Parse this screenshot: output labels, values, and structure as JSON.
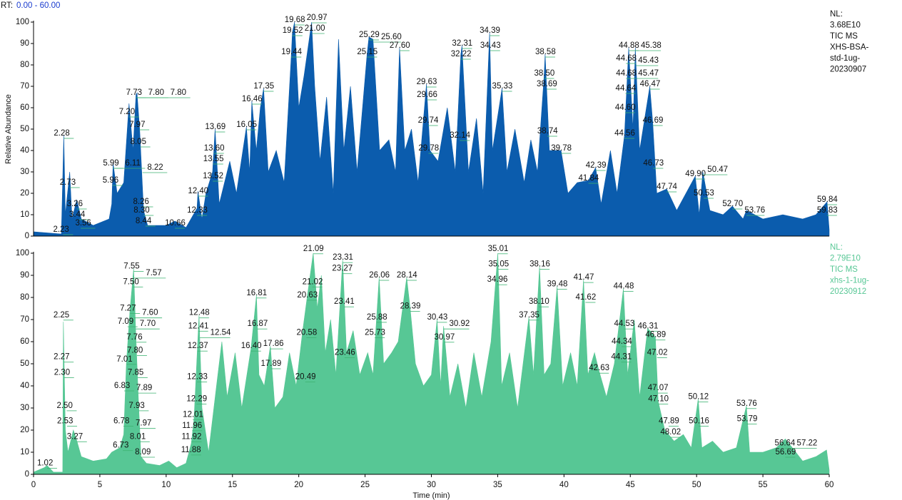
{
  "header": {
    "rt_prefix": "RT:",
    "rt_range": "0.00 - 60.00"
  },
  "chart_data": [
    {
      "type": "area",
      "color": "#0b5cad",
      "info_color": "#111111",
      "ylabel": "Relative Abundance",
      "xlim": [
        0,
        60
      ],
      "ylim": [
        0,
        100
      ],
      "yticks": [
        0,
        10,
        20,
        30,
        40,
        50,
        60,
        70,
        80,
        90,
        100
      ],
      "info_lines": [
        "NL:",
        "3.68E10",
        "TIC MS",
        "XHS-BSA-",
        "std-1ug-",
        "20230907"
      ],
      "x": [
        0,
        2.1,
        2.28,
        2.4,
        2.73,
        2.9,
        3.26,
        3.6,
        4.5,
        5.7,
        5.9,
        6.0,
        6.3,
        6.8,
        7.2,
        7.5,
        7.73,
        7.8,
        8.0,
        8.3,
        8.6,
        10.0,
        10.66,
        11.5,
        12.33,
        12.4,
        12.7,
        13.0,
        13.5,
        13.69,
        14.0,
        14.8,
        15.3,
        16.05,
        16.3,
        16.46,
        16.8,
        17.1,
        17.35,
        17.7,
        18.3,
        18.9,
        19.44,
        19.52,
        19.68,
        20.0,
        20.4,
        20.97,
        21.2,
        21.6,
        22.1,
        22.6,
        23.0,
        23.4,
        23.9,
        24.4,
        25.15,
        25.29,
        25.6,
        26.1,
        26.8,
        27.3,
        27.6,
        28.0,
        28.5,
        29.0,
        29.63,
        29.9,
        30.5,
        31.2,
        31.8,
        32.22,
        32.31,
        32.8,
        33.4,
        33.9,
        34.39,
        34.6,
        35.33,
        35.7,
        36.3,
        37.0,
        37.5,
        38.0,
        38.5,
        38.58,
        38.9,
        39.78,
        40.3,
        41.0,
        41.84,
        42.39,
        42.8,
        43.5,
        44.0,
        44.56,
        44.88,
        45.2,
        45.38,
        45.7,
        46.47,
        46.69,
        47.0,
        47.74,
        48.5,
        49.9,
        50.2,
        50.47,
        51.0,
        52.0,
        52.7,
        53.5,
        53.76,
        55.0,
        56.5,
        58.0,
        59.0,
        59.84,
        60
      ],
      "values": [
        2,
        1,
        47,
        10,
        30,
        8,
        17,
        8,
        5,
        8,
        15,
        34,
        20,
        25,
        62,
        40,
        66,
        67,
        50,
        12,
        5,
        5,
        7,
        4,
        13,
        21,
        8,
        20,
        30,
        50,
        15,
        35,
        20,
        51,
        30,
        63,
        40,
        60,
        69,
        30,
        40,
        25,
        85,
        95,
        100,
        60,
        75,
        100,
        70,
        35,
        65,
        20,
        92,
        40,
        70,
        30,
        85,
        93,
        92,
        40,
        45,
        30,
        88,
        40,
        50,
        25,
        71,
        40,
        35,
        60,
        30,
        85,
        89,
        30,
        55,
        20,
        95,
        40,
        69,
        30,
        50,
        25,
        45,
        30,
        75,
        85,
        40,
        40,
        20,
        25,
        26,
        32,
        15,
        40,
        20,
        47,
        88,
        50,
        88,
        40,
        70,
        53,
        20,
        22,
        12,
        28,
        10,
        30,
        12,
        10,
        14,
        8,
        12,
        8,
        10,
        8,
        10,
        16,
        3
      ],
      "peak_labels": [
        "2.23",
        "2.28",
        "2.73",
        "3.26",
        "3.44",
        "3.56",
        "5.99",
        "5.96",
        "6.11",
        "7.73",
        "7.80",
        "7.80",
        "7.20",
        "7.97",
        "8.05",
        "8.22",
        "8.26",
        "8.30",
        "8.44",
        "10.66",
        "12.33",
        "12.40",
        "13.52",
        "13.55",
        "13.60",
        "13.69",
        "16.05",
        "16.46",
        "17.35",
        "19.44",
        "19.52",
        "19.68",
        "20.97",
        "21.00",
        "25.15",
        "25.29",
        "25.60",
        "27.60",
        "29.63",
        "29.66",
        "29.74",
        "29.78",
        "32.14",
        "32.22",
        "32.31",
        "34.39",
        "34.43",
        "35.33",
        "38.50",
        "38.58",
        "38.69",
        "38.74",
        "39.78",
        "41.84",
        "42.39",
        "44.56",
        "44.60",
        "44.64",
        "44.68",
        "44.68",
        "44.88",
        "45.38",
        "45.43",
        "45.47",
        "46.47",
        "46.69",
        "46.73",
        "47.74",
        "49.90",
        "50.47",
        "50.53",
        "52.70",
        "53.76",
        "59.84",
        "59.83"
      ],
      "peak_rt": [
        2.23,
        2.28,
        2.73,
        3.26,
        3.44,
        3.56,
        5.99,
        5.96,
        6.11,
        7.73,
        7.8,
        7.8,
        7.2,
        7.97,
        8.05,
        8.22,
        8.26,
        8.3,
        8.44,
        10.66,
        12.33,
        12.4,
        13.52,
        13.55,
        13.6,
        13.69,
        16.05,
        16.46,
        17.35,
        19.44,
        19.52,
        19.68,
        20.97,
        21.0,
        25.15,
        25.29,
        25.6,
        27.6,
        29.63,
        29.66,
        29.74,
        29.78,
        32.14,
        32.22,
        32.31,
        34.39,
        34.43,
        35.33,
        38.5,
        38.58,
        38.69,
        38.74,
        39.78,
        41.84,
        42.39,
        44.56,
        44.6,
        44.64,
        44.68,
        44.68,
        44.88,
        45.38,
        45.43,
        45.47,
        46.47,
        46.69,
        46.73,
        47.74,
        49.9,
        50.47,
        50.53,
        52.7,
        53.76,
        59.84,
        59.83
      ],
      "peak_heights": [
        3,
        48,
        25,
        15,
        10,
        6,
        34,
        26,
        34,
        67,
        67,
        67,
        58,
        52,
        44,
        32,
        16,
        12,
        7,
        6,
        12,
        21,
        28,
        36,
        41,
        51,
        52,
        64,
        70,
        86,
        96,
        101,
        102,
        97,
        86,
        94,
        93,
        89,
        72,
        66,
        54,
        41,
        47,
        85,
        90,
        96,
        89,
        70,
        76,
        86,
        71,
        49,
        41,
        27,
        33,
        48,
        60,
        69,
        76,
        83,
        89,
        89,
        82,
        76,
        71,
        54,
        34,
        23,
        29,
        31,
        20,
        15,
        12,
        17,
        12
      ]
    },
    {
      "type": "area",
      "color": "#57c795",
      "info_color": "#57c795",
      "xlabel": "Time (min)",
      "xlim": [
        0,
        60
      ],
      "ylim": [
        0,
        100
      ],
      "yticks": [
        0,
        10,
        20,
        30,
        40,
        50,
        60,
        70,
        80,
        90,
        100
      ],
      "xticks": [
        0,
        5,
        10,
        15,
        20,
        25,
        30,
        35,
        40,
        45,
        50,
        55,
        60
      ],
      "info_lines": [
        "NL:",
        "2.79E10",
        "TIC MS",
        "xhs-1-1ug-",
        "20230912"
      ],
      "x": [
        0,
        0.8,
        1.02,
        1.5,
        2.2,
        2.25,
        2.4,
        2.6,
        3.0,
        3.27,
        3.6,
        4.5,
        5.5,
        5.9,
        6.5,
        6.8,
        7.0,
        7.27,
        7.55,
        7.7,
        7.9,
        8.1,
        8.5,
        9.5,
        10.2,
        10.8,
        11.5,
        11.9,
        12.1,
        12.48,
        12.7,
        13.2,
        13.8,
        14.2,
        14.6,
        15.2,
        15.7,
        16.4,
        16.81,
        17.0,
        17.4,
        17.86,
        18.2,
        18.8,
        19.3,
        19.8,
        20.3,
        20.63,
        21.09,
        21.4,
        21.7,
        22.0,
        22.4,
        22.8,
        23.31,
        23.6,
        24.1,
        24.6,
        25.2,
        25.6,
        26.06,
        26.4,
        27.0,
        27.5,
        28.14,
        28.4,
        28.8,
        29.4,
        30.0,
        30.43,
        30.7,
        30.92,
        31.4,
        32.0,
        32.6,
        33.2,
        33.8,
        34.5,
        35.01,
        35.3,
        35.9,
        36.5,
        37.35,
        37.7,
        38.16,
        38.5,
        39.0,
        39.48,
        39.9,
        40.5,
        41.0,
        41.47,
        41.8,
        42.3,
        42.63,
        43.2,
        43.8,
        44.48,
        44.8,
        45.3,
        45.7,
        46.31,
        46.89,
        47.1,
        47.6,
        48.3,
        49.0,
        49.6,
        50.12,
        50.4,
        51.2,
        52.0,
        53.0,
        53.76,
        54.0,
        55.0,
        56.0,
        56.69,
        57.22,
        58.0,
        59.0,
        59.8,
        60
      ],
      "values": [
        1,
        3,
        4,
        1,
        1,
        69,
        20,
        10,
        20,
        15,
        8,
        6,
        7,
        10,
        12,
        18,
        50,
        74,
        93,
        65,
        35,
        8,
        5,
        4,
        6,
        3,
        5,
        14,
        25,
        72,
        30,
        10,
        40,
        60,
        35,
        55,
        30,
        57,
        81,
        45,
        40,
        58,
        30,
        35,
        55,
        40,
        65,
        80,
        100,
        75,
        90,
        55,
        70,
        45,
        97,
        55,
        65,
        45,
        55,
        45,
        89,
        50,
        55,
        60,
        89,
        75,
        50,
        40,
        45,
        70,
        40,
        67,
        35,
        50,
        30,
        55,
        35,
        60,
        100,
        40,
        55,
        30,
        71,
        45,
        94,
        45,
        50,
        85,
        40,
        55,
        40,
        88,
        45,
        55,
        47,
        35,
        50,
        84,
        45,
        70,
        35,
        66,
        62,
        33,
        20,
        15,
        18,
        12,
        34,
        12,
        15,
        10,
        12,
        31,
        10,
        10,
        12,
        16,
        12,
        6,
        8,
        11,
        2
      ],
      "peak_labels": [
        "1.02",
        "2.25",
        "2.27",
        "2.30",
        "2.50",
        "2.53",
        "3.27",
        "6.73",
        "6.78",
        "6.83",
        "7.01",
        "7.09",
        "7.27",
        "7.50",
        "7.55",
        "7.57",
        "7.60",
        "7.70",
        "7.76",
        "7.80",
        "7.85",
        "7.89",
        "7.93",
        "7.97",
        "8.01",
        "8.09",
        "11.88",
        "11.92",
        "11.96",
        "12.01",
        "12.29",
        "12.33",
        "12.37",
        "12.41",
        "12.48",
        "12.54",
        "16.40",
        "16.81",
        "16.87",
        "17.86",
        "17.89",
        "20.49",
        "20.58",
        "20.63",
        "21.02",
        "21.09",
        "23.27",
        "23.31",
        "23.41",
        "25.88",
        "25.73",
        "23.46",
        "26.06",
        "28.14",
        "28.39",
        "30.43",
        "30.92",
        "30.97",
        "34.96",
        "35.01",
        "35.05",
        "37.35",
        "38.10",
        "38.16",
        "39.48",
        "41.47",
        "41.62",
        "42.63",
        "44.31",
        "44.34",
        "44.48",
        "44.53",
        "46.31",
        "46.89",
        "47.02",
        "47.07",
        "47.10",
        "47.89",
        "48.02",
        "50.12",
        "50.16",
        "53.76",
        "53.79",
        "56.69",
        "56.64",
        "57.22"
      ],
      "peak_rt": [
        1.02,
        2.25,
        2.27,
        2.3,
        2.5,
        2.53,
        3.27,
        6.73,
        6.78,
        6.83,
        7.01,
        7.09,
        7.27,
        7.5,
        7.55,
        7.57,
        7.6,
        7.7,
        7.76,
        7.8,
        7.85,
        7.89,
        7.93,
        7.97,
        8.01,
        8.09,
        11.88,
        11.92,
        11.96,
        12.01,
        12.29,
        12.33,
        12.37,
        12.41,
        12.48,
        12.54,
        16.4,
        16.81,
        16.87,
        17.86,
        17.89,
        20.49,
        20.58,
        20.63,
        21.02,
        21.09,
        23.27,
        23.31,
        23.41,
        25.88,
        25.73,
        23.46,
        26.06,
        28.14,
        28.39,
        30.43,
        30.92,
        30.97,
        34.96,
        35.01,
        35.05,
        37.35,
        38.1,
        38.16,
        39.48,
        41.47,
        41.62,
        42.63,
        44.31,
        44.34,
        44.48,
        44.53,
        46.31,
        46.89,
        47.02,
        47.07,
        47.1,
        47.89,
        48.02,
        50.12,
        50.16,
        53.76,
        53.79,
        56.69,
        56.64,
        57.22
      ],
      "peak_heights": [
        5,
        72,
        53,
        46,
        31,
        24,
        17,
        13,
        24,
        40,
        52,
        69,
        75,
        87,
        94,
        91,
        73,
        68,
        62,
        56,
        46,
        39,
        31,
        23,
        17,
        10,
        11,
        17,
        22,
        27,
        34,
        44,
        58,
        67,
        73,
        64,
        58,
        82,
        68,
        59,
        50,
        44,
        64,
        81,
        87,
        102,
        93,
        98,
        78,
        71,
        64,
        55,
        90,
        90,
        76,
        71,
        68,
        62,
        88,
        102,
        95,
        72,
        78,
        95,
        86,
        89,
        80,
        48,
        53,
        60,
        85,
        68,
        67,
        63,
        55,
        39,
        34,
        24,
        19,
        35,
        24,
        32,
        25,
        10,
        14,
        14
      ]
    }
  ]
}
